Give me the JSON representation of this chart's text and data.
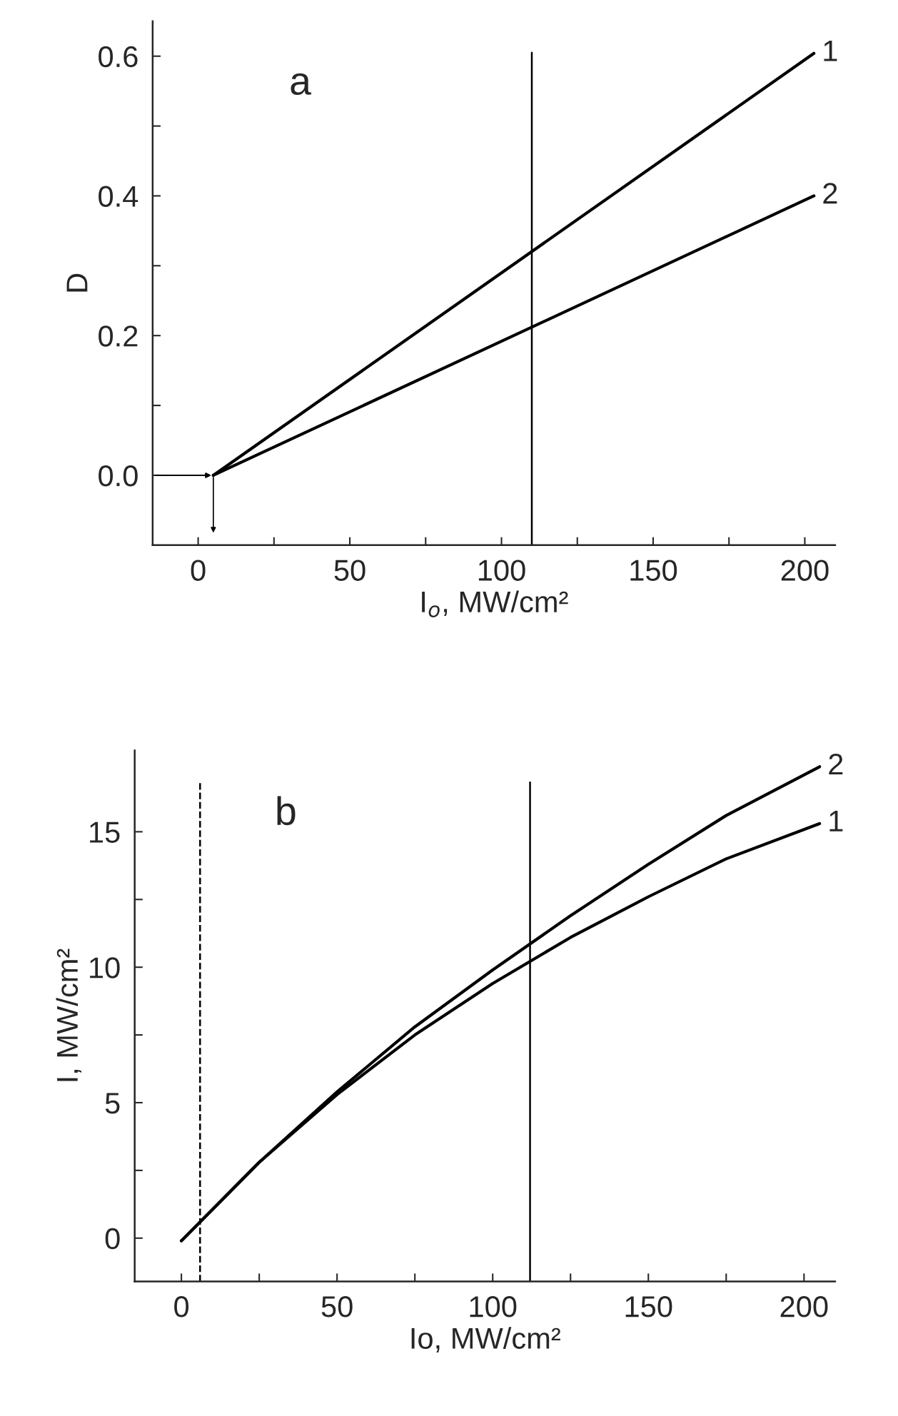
{
  "chart_data": [
    {
      "type": "line",
      "title": "a",
      "xlabel": "I$_{o}$, MW/cm²",
      "ylabel": "D",
      "x": [
        5,
        203
      ],
      "series": [
        {
          "name": "1",
          "color": "#000000",
          "values": [
            0.0,
            0.604
          ]
        },
        {
          "name": "2",
          "color": "#000000",
          "values": [
            0.0,
            0.4
          ]
        }
      ],
      "xlim": [
        -15,
        210
      ],
      "ylim": [
        -0.1,
        0.65
      ],
      "xticks": [
        0,
        {
          "value": 25,
          "label": null
        },
        50,
        {
          "value": 75,
          "label": null
        },
        100,
        {
          "value": 125,
          "label": null
        },
        150,
        {
          "value": 175,
          "label": null
        },
        200
      ],
      "yticks": [
        {
          "value": 0,
          "label": "0.0"
        },
        {
          "value": 0.1,
          "label": null
        },
        0.2,
        {
          "value": 0.3,
          "label": null
        },
        0.4,
        {
          "value": 0.5,
          "label": null
        },
        0.6
      ],
      "ref_lines": [
        {
          "axis": "x",
          "value": 110,
          "color": "#000000",
          "line_style": "solid"
        }
      ],
      "grid": false,
      "legend": false,
      "marker": "none",
      "line_style": "solid"
    },
    {
      "type": "line",
      "title": "b",
      "xlabel": "Io, MW/cm²",
      "ylabel": "I, MW/cm²",
      "x": [
        0,
        25,
        50,
        75,
        100,
        125,
        150,
        175,
        205
      ],
      "series": [
        {
          "name": "2",
          "color": "#000000",
          "values": [
            -0.1,
            2.8,
            5.4,
            7.8,
            9.9,
            11.9,
            13.8,
            15.6,
            17.4
          ]
        },
        {
          "name": "1",
          "color": "#000000",
          "values": [
            -0.1,
            2.8,
            5.3,
            7.5,
            9.4,
            11.1,
            12.6,
            14.0,
            15.3
          ]
        }
      ],
      "xlim": [
        -15,
        210
      ],
      "ylim": [
        -1.6,
        18
      ],
      "xticks": [
        0,
        {
          "value": 25,
          "label": null
        },
        50,
        {
          "value": 75,
          "label": null
        },
        100,
        {
          "value": 125,
          "label": null
        },
        150,
        {
          "value": 175,
          "label": null
        },
        200
      ],
      "yticks": [
        0,
        {
          "value": 2.5,
          "label": null
        },
        5,
        {
          "value": 7.5,
          "label": null
        },
        10,
        {
          "value": 12.5,
          "label": null
        },
        15
      ],
      "ref_lines": [
        {
          "axis": "x",
          "value": 6,
          "color": "#000000",
          "line_style": "dashed"
        },
        {
          "axis": "x",
          "value": 112,
          "color": "#000000",
          "line_style": "solid"
        }
      ],
      "grid": false,
      "legend": false,
      "marker": "none",
      "line_style": "solid"
    }
  ]
}
